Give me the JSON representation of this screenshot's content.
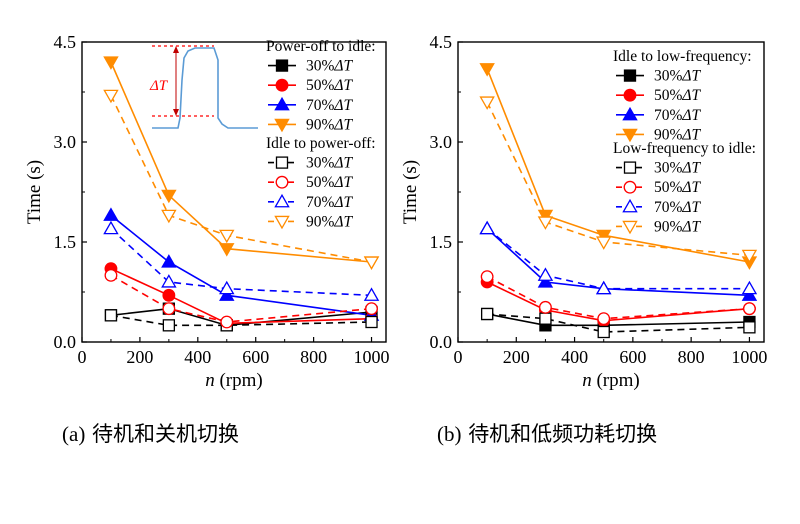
{
  "captions": [
    {
      "label": "(a)",
      "text": "待机和关机切换"
    },
    {
      "label": "(b)",
      "text": "待机和低频功耗切换"
    }
  ],
  "inset": {
    "delta_label": "ΔT"
  },
  "colors": {
    "black": "#000000",
    "red": "#ff0000",
    "blue": "#0000ff",
    "orange": "#ff8c00",
    "inset": "#5b9bd5",
    "inset_marker": "#ff0000"
  },
  "chart_data": [
    {
      "type": "line",
      "panel": "a",
      "ylabel": "Time (s)",
      "xlabel_italic": "n",
      "xlabel_rest": " (rpm)",
      "xlim": [
        0,
        1050
      ],
      "ylim": [
        0,
        4.5
      ],
      "xticks": [
        0,
        200,
        400,
        600,
        800,
        1000
      ],
      "yticks": [
        0.0,
        1.5,
        3.0,
        4.5
      ],
      "x": [
        100,
        300,
        500,
        1000
      ],
      "group_titles": [
        "Power-off to idle:",
        "Idle to power-off:"
      ],
      "series": [
        {
          "name": "30%ΔT",
          "pct": "30%",
          "sym": "ΔT",
          "group": 0,
          "color": "black",
          "marker": "square",
          "filled": true,
          "values": [
            0.4,
            0.5,
            0.25,
            0.45
          ]
        },
        {
          "name": "50%ΔT",
          "pct": "50%",
          "sym": "ΔT",
          "group": 0,
          "color": "red",
          "marker": "circle",
          "filled": true,
          "values": [
            1.1,
            0.7,
            0.28,
            0.35
          ]
        },
        {
          "name": "70%ΔT",
          "pct": "70%",
          "sym": "ΔT",
          "group": 0,
          "color": "blue",
          "marker": "triangle-up",
          "filled": true,
          "values": [
            1.9,
            1.2,
            0.7,
            0.4
          ]
        },
        {
          "name": "90%ΔT",
          "pct": "90%",
          "sym": "ΔT",
          "group": 0,
          "color": "orange",
          "marker": "triangle-down",
          "filled": true,
          "values": [
            4.2,
            2.2,
            1.4,
            1.2
          ]
        },
        {
          "name": "30%ΔT",
          "pct": "30%",
          "sym": "ΔT",
          "group": 1,
          "color": "black",
          "marker": "square",
          "filled": false,
          "values": [
            0.4,
            0.25,
            0.25,
            0.3
          ]
        },
        {
          "name": "50%ΔT",
          "pct": "50%",
          "sym": "ΔT",
          "group": 1,
          "color": "red",
          "marker": "circle",
          "filled": false,
          "values": [
            1.0,
            0.5,
            0.3,
            0.5
          ]
        },
        {
          "name": "70%ΔT",
          "pct": "70%",
          "sym": "ΔT",
          "group": 1,
          "color": "blue",
          "marker": "triangle-up",
          "filled": false,
          "values": [
            1.7,
            0.9,
            0.8,
            0.7
          ]
        },
        {
          "name": "90%ΔT",
          "pct": "90%",
          "sym": "ΔT",
          "group": 1,
          "color": "orange",
          "marker": "triangle-down",
          "filled": false,
          "values": [
            3.7,
            1.9,
            1.6,
            1.2
          ]
        }
      ]
    },
    {
      "type": "line",
      "panel": "b",
      "ylabel": "Time (s)",
      "xlabel_italic": "n",
      "xlabel_rest": " (rpm)",
      "xlim": [
        0,
        1050
      ],
      "ylim": [
        0,
        4.5
      ],
      "xticks": [
        0,
        200,
        400,
        600,
        800,
        1000
      ],
      "yticks": [
        0.0,
        1.5,
        3.0,
        4.5
      ],
      "x": [
        100,
        300,
        500,
        1000
      ],
      "group_titles": [
        "Idle to low-frequency:",
        "Low-frequency to idle:"
      ],
      "series": [
        {
          "name": "30%ΔT",
          "pct": "30%",
          "sym": "ΔT",
          "group": 0,
          "color": "black",
          "marker": "square",
          "filled": true,
          "values": [
            0.42,
            0.25,
            0.25,
            0.3
          ]
        },
        {
          "name": "50%ΔT",
          "pct": "50%",
          "sym": "ΔT",
          "group": 0,
          "color": "red",
          "marker": "circle",
          "filled": true,
          "values": [
            0.9,
            0.48,
            0.32,
            0.5
          ]
        },
        {
          "name": "70%ΔT",
          "pct": "70%",
          "sym": "ΔT",
          "group": 0,
          "color": "blue",
          "marker": "triangle-up",
          "filled": true,
          "values": [
            1.7,
            0.9,
            0.8,
            0.7
          ]
        },
        {
          "name": "90%ΔT",
          "pct": "90%",
          "sym": "ΔT",
          "group": 0,
          "color": "orange",
          "marker": "triangle-down",
          "filled": true,
          "values": [
            4.1,
            1.9,
            1.6,
            1.2
          ]
        },
        {
          "name": "30%ΔT",
          "pct": "30%",
          "sym": "ΔT",
          "group": 1,
          "color": "black",
          "marker": "square",
          "filled": false,
          "values": [
            0.42,
            0.35,
            0.15,
            0.22
          ]
        },
        {
          "name": "50%ΔT",
          "pct": "50%",
          "sym": "ΔT",
          "group": 1,
          "color": "red",
          "marker": "circle",
          "filled": false,
          "values": [
            0.98,
            0.52,
            0.35,
            0.5
          ]
        },
        {
          "name": "70%ΔT",
          "pct": "70%",
          "sym": "ΔT",
          "group": 1,
          "color": "blue",
          "marker": "triangle-up",
          "filled": false,
          "values": [
            1.7,
            1.0,
            0.8,
            0.8
          ]
        },
        {
          "name": "90%ΔT",
          "pct": "90%",
          "sym": "ΔT",
          "group": 1,
          "color": "orange",
          "marker": "triangle-down",
          "filled": false,
          "values": [
            3.6,
            1.8,
            1.5,
            1.3
          ]
        }
      ]
    }
  ]
}
